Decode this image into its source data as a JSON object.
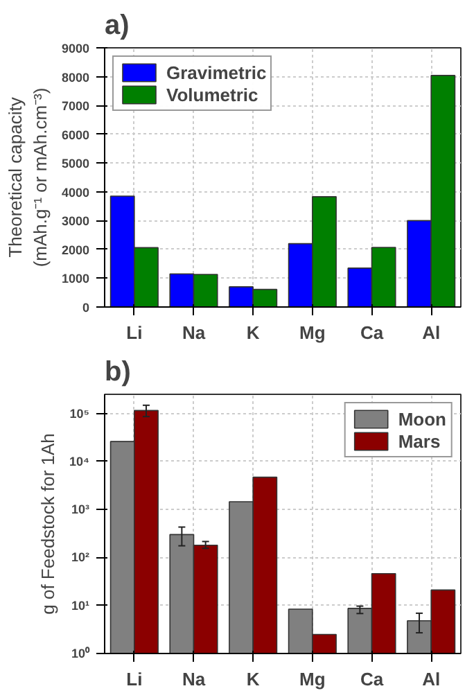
{
  "chart_data": [
    {
      "type": "bar",
      "title": "a)",
      "ylabel": "Theoretical capacity\n(mAh.g⁻¹ or mAh.cm⁻³)",
      "categories": [
        "Li",
        "Na",
        "K",
        "Mg",
        "Ca",
        "Al"
      ],
      "series": [
        {
          "name": "Gravimetric",
          "color": "#0000ff",
          "values": [
            3850,
            1150,
            700,
            2200,
            1350,
            3000
          ]
        },
        {
          "name": "Volumetric",
          "color": "#007f00",
          "values": [
            2060,
            1130,
            610,
            3830,
            2070,
            8040
          ]
        }
      ],
      "ylim": [
        0,
        9000
      ],
      "yticks": [
        0,
        1000,
        2000,
        3000,
        4000,
        5000,
        6000,
        7000,
        8000,
        9000
      ],
      "grid": true,
      "legend": "top left"
    },
    {
      "type": "bar",
      "title": "b)",
      "ylabel": "g of Feedstock for 1Ah",
      "categories": [
        "Li",
        "Na",
        "K",
        "Mg",
        "Ca",
        "Al"
      ],
      "series": [
        {
          "name": "Moon",
          "color": "#808080",
          "values": [
            26000,
            300,
            1450,
            8.4,
            8.7,
            4.8
          ],
          "errors": [
            null,
            [
              175,
              430
            ],
            null,
            null,
            [
              6.8,
              9.7
            ],
            [
              2.7,
              6.9
            ]
          ]
        },
        {
          "name": "Mars",
          "color": "#8b0000",
          "values": [
            115000,
            180,
            4700,
            2.5,
            46,
            21
          ],
          "errors": [
            [
              86000,
              148000
            ],
            [
              155,
              215
            ],
            null,
            null,
            null,
            null
          ]
        }
      ],
      "log": true,
      "ylim": [
        1,
        250000
      ],
      "yticks": [
        {
          "value": 1,
          "label": "10⁰"
        },
        {
          "value": 10,
          "label": "10¹"
        },
        {
          "value": 100,
          "label": "10²"
        },
        {
          "value": 1000,
          "label": "10³"
        },
        {
          "value": 10000,
          "label": "10⁴"
        },
        {
          "value": 100000,
          "label": "10⁵"
        }
      ],
      "grid": true,
      "legend": "top right"
    }
  ]
}
